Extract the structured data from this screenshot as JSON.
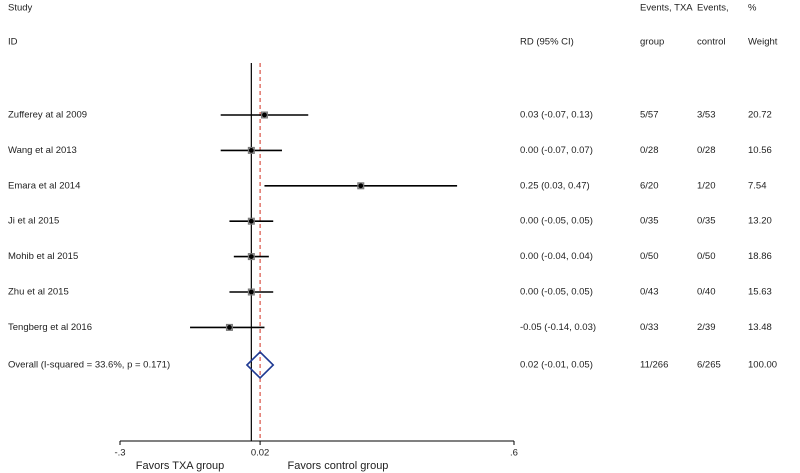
{
  "chart_data": {
    "type": "forest",
    "headers": {
      "study": "Study",
      "id": "ID",
      "rd": "RD (95% CI)",
      "txa_1": "Events, TXA",
      "txa_2": "group",
      "control_1": "Events,",
      "control_2": "control",
      "weight_1": "%",
      "weight_2": "Weight"
    },
    "studies": [
      {
        "name": "Zufferey at al 2009",
        "estimate": 0.03,
        "lower": -0.07,
        "upper": 0.13,
        "ci_label": "0.03 (-0.07, 0.13)",
        "events_txa": "5/57",
        "events_control": "3/53",
        "weight": "20.72"
      },
      {
        "name": "Wang et al 2013",
        "estimate": 0.0,
        "lower": -0.07,
        "upper": 0.07,
        "ci_label": "0.00 (-0.07, 0.07)",
        "events_txa": "0/28",
        "events_control": "0/28",
        "weight": "10.56"
      },
      {
        "name": "Emara et al 2014",
        "estimate": 0.25,
        "lower": 0.03,
        "upper": 0.47,
        "ci_label": "0.25 (0.03, 0.47)",
        "events_txa": "6/20",
        "events_control": "1/20",
        "weight": "7.54"
      },
      {
        "name": "Ji et al 2015",
        "estimate": 0.0,
        "lower": -0.05,
        "upper": 0.05,
        "ci_label": "0.00 (-0.05, 0.05)",
        "events_txa": "0/35",
        "events_control": "0/35",
        "weight": "13.20"
      },
      {
        "name": "Mohib et al 2015",
        "estimate": 0.0,
        "lower": -0.04,
        "upper": 0.04,
        "ci_label": "0.00 (-0.04, 0.04)",
        "events_txa": "0/50",
        "events_control": "0/50",
        "weight": "18.86"
      },
      {
        "name": "Zhu et al 2015",
        "estimate": 0.0,
        "lower": -0.05,
        "upper": 0.05,
        "ci_label": "0.00 (-0.05, 0.05)",
        "events_txa": "0/43",
        "events_control": "0/40",
        "weight": "15.63"
      },
      {
        "name": "Tengberg et al 2016",
        "estimate": -0.05,
        "lower": -0.14,
        "upper": 0.03,
        "ci_label": "-0.05 (-0.14, 0.03)",
        "events_txa": "0/33",
        "events_control": "2/39",
        "weight": "13.48"
      }
    ],
    "overall": {
      "name": "Overall  (I-squared = 33.6%, p = 0.171)",
      "estimate": 0.02,
      "lower": -0.01,
      "upper": 0.05,
      "ci_label": "0.02 (-0.01, 0.05)",
      "events_txa": "11/266",
      "events_control": "6/265",
      "weight": "100.00",
      "color": "#1f3a93"
    },
    "reference_line": 0,
    "xlim": [
      -0.3,
      0.6
    ],
    "xticks": [
      {
        "value": -0.3,
        "label": "-.3"
      },
      {
        "value": 0.02,
        "label": "0.02"
      },
      {
        "value": 0.6,
        "label": ".6"
      }
    ],
    "favors_left": "Favors TXA group",
    "favors_right": "Favors control group",
    "dashed_color": "#d03020"
  }
}
